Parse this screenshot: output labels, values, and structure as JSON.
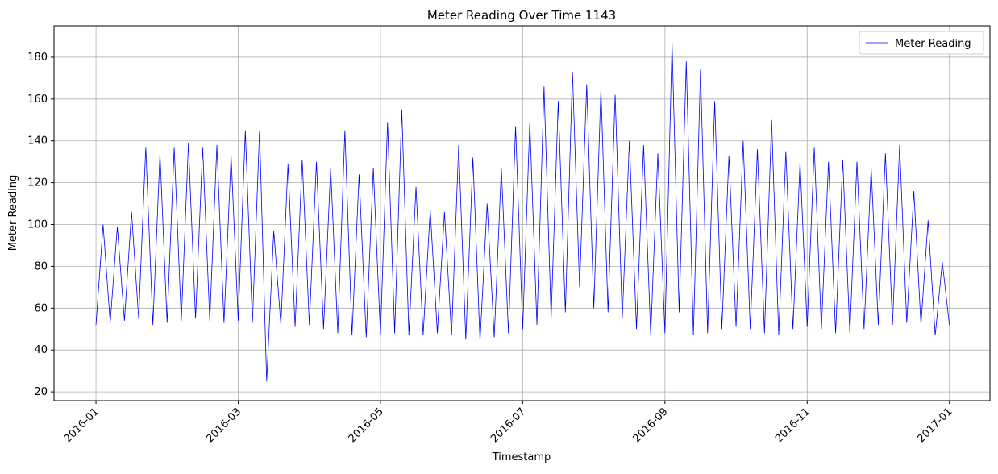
{
  "chart_data": {
    "type": "line",
    "title": "Meter Reading Over Time 1143",
    "x_label": "Timestamp",
    "y_label": "Meter Reading",
    "x": [
      0,
      0.1,
      0.2,
      0.3,
      0.4,
      0.5,
      0.6,
      0.7,
      0.8,
      0.9,
      1,
      1.1,
      1.2,
      1.3,
      1.4,
      1.5,
      1.6,
      1.7,
      1.8,
      1.9,
      2,
      2.1,
      2.2,
      2.3,
      2.4,
      2.5,
      2.6,
      2.7,
      2.8,
      2.9,
      3,
      3.1,
      3.2,
      3.3,
      3.4,
      3.5,
      3.6,
      3.7,
      3.8,
      3.9,
      4,
      4.1,
      4.2,
      4.3,
      4.4,
      4.5,
      4.6,
      4.7,
      4.8,
      4.9,
      5,
      5.1,
      5.2,
      5.3,
      5.4,
      5.5,
      5.6,
      5.7,
      5.8,
      5.9,
      6,
      6.1,
      6.2,
      6.3,
      6.4,
      6.5,
      6.6,
      6.7,
      6.8,
      6.9,
      7,
      7.1,
      7.2,
      7.3,
      7.4,
      7.5,
      7.6,
      7.7,
      7.8,
      7.9,
      8,
      8.1,
      8.2,
      8.3,
      8.4,
      8.5,
      8.6,
      8.7,
      8.8,
      8.9,
      9,
      9.1,
      9.2,
      9.3,
      9.4,
      9.5,
      9.6,
      9.7,
      9.8,
      9.9,
      10,
      10.1,
      10.2,
      10.3,
      10.4,
      10.5,
      10.6,
      10.7,
      10.8,
      10.9,
      11,
      11.1,
      11.2,
      11.3,
      11.4,
      11.5,
      11.6,
      11.7,
      11.8,
      11.9,
      12
    ],
    "series": [
      {
        "name": "Meter Reading",
        "color": "#0000ff",
        "values": [
          52,
          100,
          53,
          99,
          54,
          106,
          55,
          137,
          52,
          134,
          53,
          137,
          54,
          139,
          55,
          137,
          54,
          138,
          53,
          133,
          54,
          145,
          53,
          145,
          25,
          97,
          52,
          129,
          51,
          131,
          52,
          130,
          50,
          127,
          48,
          145,
          47,
          124,
          46,
          127,
          47,
          149,
          48,
          155,
          47,
          118,
          47,
          107,
          48,
          106,
          47,
          138,
          45,
          132,
          44,
          110,
          46,
          127,
          48,
          147,
          50,
          149,
          52,
          166,
          55,
          159,
          58,
          173,
          70,
          167,
          60,
          165,
          58,
          162,
          55,
          140,
          50,
          138,
          47,
          134,
          48,
          187,
          58,
          178,
          47,
          174,
          48,
          159,
          50,
          133,
          51,
          140,
          50,
          136,
          48,
          150,
          47,
          135,
          50,
          130,
          51,
          137,
          50,
          130,
          48,
          131,
          48,
          130,
          50,
          127,
          52,
          134,
          52,
          138,
          53,
          116,
          52,
          102,
          47,
          82,
          52
        ]
      }
    ],
    "xlim": [
      -0.59,
      12.57
    ],
    "xticks": [
      {
        "value": 0,
        "label": "2016-01"
      },
      {
        "value": 2,
        "label": "2016-03"
      },
      {
        "value": 4,
        "label": "2016-05"
      },
      {
        "value": 6,
        "label": "2016-07"
      },
      {
        "value": 8,
        "label": "2016-09"
      },
      {
        "value": 10,
        "label": "2016-11"
      },
      {
        "value": 12,
        "label": "2017-01"
      }
    ],
    "ylim": [
      15.8,
      195
    ],
    "yticks": [
      20,
      40,
      60,
      80,
      100,
      120,
      140,
      160,
      180
    ],
    "grid": true,
    "legend": "upper-right"
  }
}
